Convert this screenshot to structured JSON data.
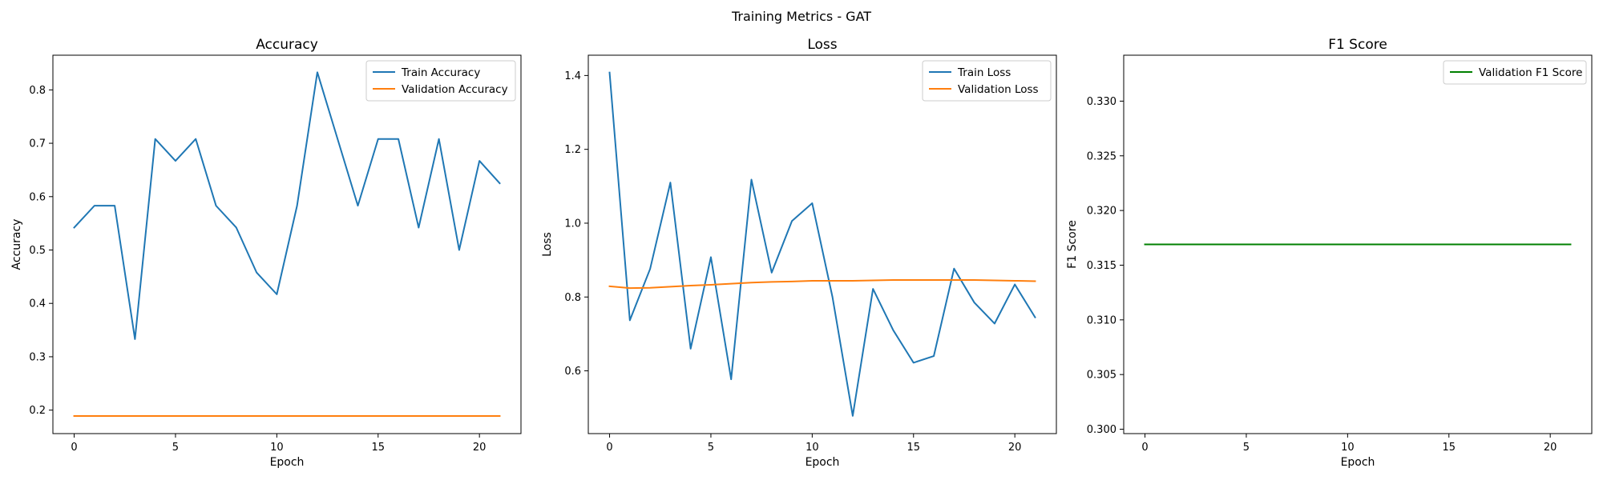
{
  "figure": {
    "suptitle": "Training Metrics - GAT"
  },
  "colors": {
    "train": "#1f77b4",
    "validation": "#ff7f0e",
    "f1": "#008000"
  },
  "chart_data": [
    {
      "type": "line",
      "title": "Accuracy",
      "xlabel": "Epoch",
      "ylabel": "Accuracy",
      "xlim": [
        -1.05,
        22.05
      ],
      "ylim": [
        0.156,
        0.865
      ],
      "xticks": [
        0,
        5,
        10,
        15,
        20
      ],
      "yticks": [
        0.2,
        0.3,
        0.4,
        0.5,
        0.6,
        0.7,
        0.8
      ],
      "yticklabels": [
        "0.2",
        "0.3",
        "0.4",
        "0.5",
        "0.6",
        "0.7",
        "0.8"
      ],
      "legend": "upper right",
      "grid": false,
      "x": [
        0,
        1,
        2,
        3,
        4,
        5,
        6,
        7,
        8,
        9,
        10,
        11,
        12,
        13,
        14,
        15,
        16,
        17,
        18,
        19,
        20,
        21
      ],
      "series": [
        {
          "name": "Train Accuracy",
          "color": "#1f77b4",
          "values": [
            0.542,
            0.583,
            0.583,
            0.333,
            0.708,
            0.667,
            0.708,
            0.583,
            0.542,
            0.458,
            0.417,
            0.583,
            0.833,
            0.708,
            0.583,
            0.708,
            0.708,
            0.542,
            0.708,
            0.5,
            0.667,
            0.625
          ]
        },
        {
          "name": "Validation Accuracy",
          "color": "#ff7f0e",
          "values": [
            0.189,
            0.189,
            0.189,
            0.189,
            0.189,
            0.189,
            0.189,
            0.189,
            0.189,
            0.189,
            0.189,
            0.189,
            0.189,
            0.189,
            0.189,
            0.189,
            0.189,
            0.189,
            0.189,
            0.189,
            0.189,
            0.189
          ]
        }
      ]
    },
    {
      "type": "line",
      "title": "Loss",
      "xlabel": "Epoch",
      "ylabel": "Loss",
      "xlim": [
        -1.05,
        22.05
      ],
      "ylim": [
        0.43,
        1.455
      ],
      "xticks": [
        0,
        5,
        10,
        15,
        20
      ],
      "yticks": [
        0.6,
        0.8,
        1.0,
        1.2,
        1.4
      ],
      "yticklabels": [
        "0.6",
        "0.8",
        "1.0",
        "1.2",
        "1.4"
      ],
      "legend": "upper right",
      "grid": false,
      "x": [
        0,
        1,
        2,
        3,
        4,
        5,
        6,
        7,
        8,
        9,
        10,
        11,
        12,
        13,
        14,
        15,
        16,
        17,
        18,
        19,
        20,
        21
      ],
      "series": [
        {
          "name": "Train Loss",
          "color": "#1f77b4",
          "values": [
            1.408,
            0.737,
            0.876,
            1.11,
            0.66,
            0.908,
            0.577,
            1.118,
            0.866,
            1.006,
            1.054,
            0.8,
            0.478,
            0.822,
            0.71,
            0.622,
            0.64,
            0.877,
            0.785,
            0.728,
            0.834,
            0.745
          ]
        },
        {
          "name": "Validation Loss",
          "color": "#ff7f0e",
          "values": [
            0.829,
            0.824,
            0.825,
            0.828,
            0.831,
            0.833,
            0.836,
            0.839,
            0.841,
            0.842,
            0.844,
            0.844,
            0.844,
            0.845,
            0.846,
            0.846,
            0.846,
            0.846,
            0.846,
            0.845,
            0.844,
            0.843
          ]
        }
      ]
    },
    {
      "type": "line",
      "title": "F1 Score",
      "xlabel": "Epoch",
      "ylabel": "F1 Score",
      "xlim": [
        -1.05,
        22.05
      ],
      "ylim": [
        0.2996,
        0.3342
      ],
      "xticks": [
        0,
        5,
        10,
        15,
        20
      ],
      "yticks": [
        0.3,
        0.305,
        0.31,
        0.315,
        0.32,
        0.325,
        0.33
      ],
      "yticklabels": [
        "0.300",
        "0.305",
        "0.310",
        "0.315",
        "0.320",
        "0.325",
        "0.330"
      ],
      "legend": "upper right",
      "grid": false,
      "x": [
        0,
        1,
        2,
        3,
        4,
        5,
        6,
        7,
        8,
        9,
        10,
        11,
        12,
        13,
        14,
        15,
        16,
        17,
        18,
        19,
        20,
        21
      ],
      "series": [
        {
          "name": "Validation F1 Score",
          "color": "#008000",
          "values": [
            0.3169,
            0.3169,
            0.3169,
            0.3169,
            0.3169,
            0.3169,
            0.3169,
            0.3169,
            0.3169,
            0.3169,
            0.3169,
            0.3169,
            0.3169,
            0.3169,
            0.3169,
            0.3169,
            0.3169,
            0.3169,
            0.3169,
            0.3169,
            0.3169,
            0.3169
          ]
        }
      ]
    }
  ]
}
